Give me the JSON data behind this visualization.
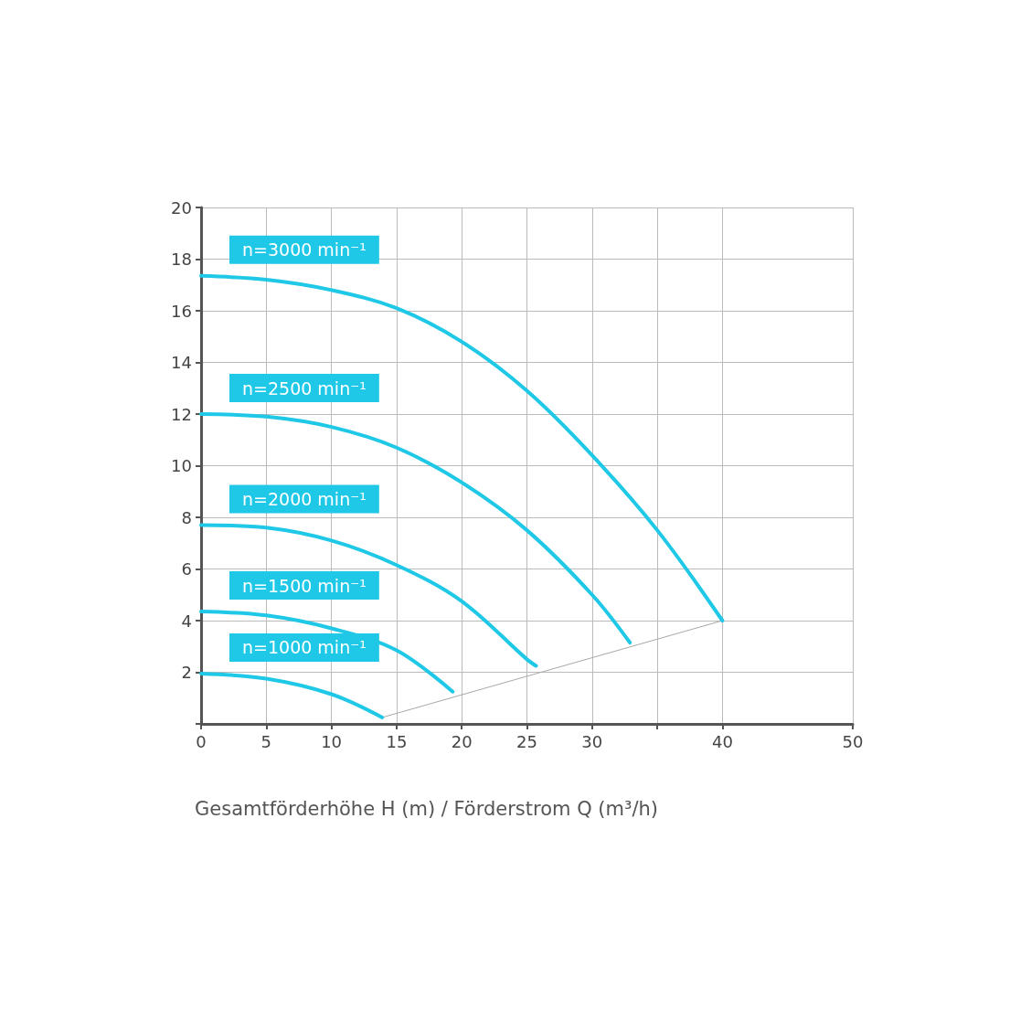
{
  "chart_data": {
    "type": "line",
    "xlabel": "Gesamtförderhöhe H (m) / Förderstrom Q (m³/h)",
    "xlim": [
      0,
      50
    ],
    "ylim": [
      0,
      20
    ],
    "xticks": [
      0,
      5,
      10,
      15,
      20,
      25,
      30,
      {
        "value": 35,
        "label": null
      },
      40,
      50
    ],
    "yticks": [
      {
        "value": 0,
        "label": null
      },
      2,
      4,
      6,
      8,
      10,
      12,
      14,
      16,
      18,
      20
    ],
    "grid": true,
    "marker": "none",
    "line_style": "solid",
    "series": [
      {
        "name": "n=3000 min⁻¹",
        "color": "#1ec8e6",
        "x": [
          0,
          5,
          10,
          15,
          20,
          25,
          30,
          35,
          40
        ],
        "values": [
          17.35,
          17.2,
          16.8,
          16.1,
          14.8,
          12.9,
          10.4,
          7.5,
          4.0
        ]
      },
      {
        "name": "n=2500 min⁻¹",
        "color": "#1ec8e6",
        "x": [
          0,
          5,
          10,
          15,
          20,
          25,
          30,
          32.9
        ],
        "values": [
          12.0,
          11.9,
          11.5,
          10.7,
          9.35,
          7.5,
          5.0,
          3.15
        ]
      },
      {
        "name": "n=2000 min⁻¹",
        "color": "#1ec8e6",
        "x": [
          0,
          5,
          10,
          15,
          20,
          25,
          25.7
        ],
        "values": [
          7.7,
          7.6,
          7.1,
          6.15,
          4.75,
          2.5,
          2.25
        ]
      },
      {
        "name": "n=1500 min⁻¹",
        "color": "#1ec8e6",
        "x": [
          0,
          5,
          10,
          15,
          19.3
        ],
        "values": [
          4.35,
          4.2,
          3.7,
          2.85,
          1.25
        ]
      },
      {
        "name": "n=1000 min⁻¹",
        "color": "#1ec8e6",
        "x": [
          0,
          5,
          10,
          13.9
        ],
        "values": [
          1.95,
          1.75,
          1.15,
          0.25
        ]
      },
      {
        "color": "#a8a8a8",
        "x": [
          13.9,
          40
        ],
        "values": [
          0.25,
          4.0
        ],
        "line_style": "solid"
      }
    ]
  }
}
